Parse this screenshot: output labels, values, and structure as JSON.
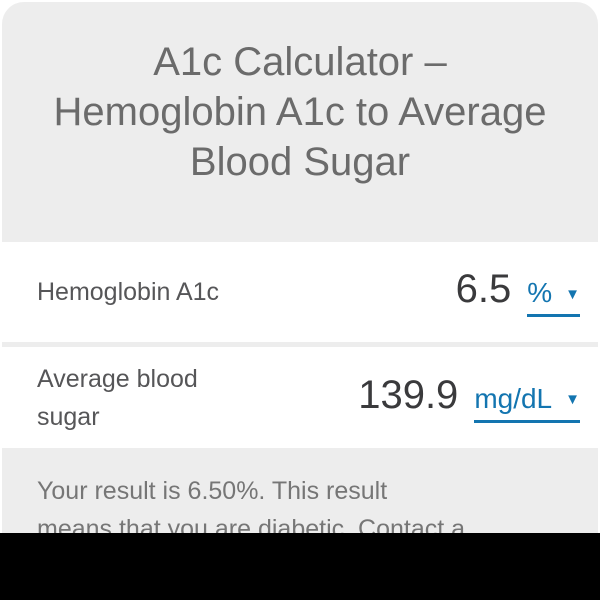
{
  "title_lines": [
    "A1c Calculator –",
    "Hemoglobin A1c to Average",
    "Blood Sugar"
  ],
  "fields": [
    {
      "label": "Hemoglobin A1c",
      "value": "6.5",
      "unit": "%"
    },
    {
      "label": "Average blood sugar",
      "value": "139.9",
      "unit": "mg/dL"
    }
  ],
  "result_lines": [
    "Your result is 6.50%. This result",
    "means that you are diabetic. Contact a"
  ],
  "icons": {
    "dropdown_arrow": "▼"
  },
  "colors": {
    "accent_blue": "#1375b0",
    "card_background": "#ededed",
    "row_background": "#ffffff",
    "title_text": "#6b6b6b",
    "label_text": "#565658",
    "value_text": "#3a3a3c",
    "result_text": "#767676",
    "bottom_bar": "#000000"
  }
}
